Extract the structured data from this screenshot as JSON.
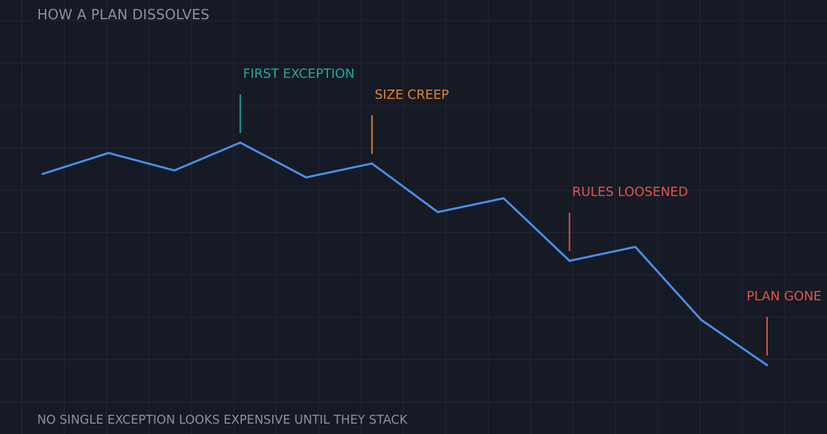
{
  "header": {
    "title": "HOW A PLAN DISSOLVES"
  },
  "footer": {
    "note": "NO SINGLE EXCEPTION LOOKS EXPENSIVE UNTIL THEY STACK"
  },
  "colors": {
    "background": "#161a25",
    "grid": "#232838",
    "line": "#4a8fea",
    "teal": "#21a99a",
    "orange": "#e5832f",
    "red": "#e0534b",
    "muted_text": "#8b909c"
  },
  "chart_data": {
    "type": "line",
    "title": "HOW A PLAN DISSOLVES",
    "grid": true,
    "axes_visible": false,
    "series": [
      {
        "values": [
          100,
          106,
          101,
          109,
          99,
          103,
          89,
          93,
          75,
          79,
          58,
          45
        ]
      }
    ],
    "annotations": [
      {
        "label": "FIRST EXCEPTION",
        "index": 3,
        "color": "#21a99a",
        "placement": "above"
      },
      {
        "label": "SIZE CREEP",
        "index": 5,
        "color": "#e5832f",
        "placement": "above"
      },
      {
        "label": "RULES LOOSENED",
        "index": 8,
        "color": "#e0534b",
        "placement": "above"
      },
      {
        "label": "PLAN GONE",
        "index": 11,
        "color": "#e0534b",
        "placement": "above"
      }
    ]
  }
}
